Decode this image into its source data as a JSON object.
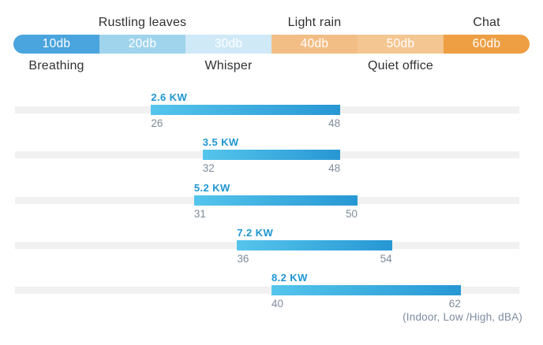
{
  "colors": {
    "segment_10db": "#4aa4dd",
    "segment_20db": "#9fd4ec",
    "segment_30db": "#cfe9f7",
    "segment_40db": "#f3be85",
    "segment_50db": "#f4c691",
    "segment_60db": "#ee9e43",
    "range_bar_gradient_start": "#55c5ec",
    "range_bar_gradient_end": "#2797d4",
    "track": "#f1f1f2",
    "kw_label": "#1e96d2",
    "value_label": "#7e8b9a",
    "scale_text": "#ffffff",
    "caption_text": "#2e3033",
    "footnote": "#7d8ba0"
  },
  "scale": {
    "min_db": 10,
    "max_db": 70,
    "segments": [
      {
        "label": "10db",
        "color": "#4aa4dd"
      },
      {
        "label": "20db",
        "color": "#9fd4ec"
      },
      {
        "label": "30db",
        "color": "#cfe9f7"
      },
      {
        "label": "40db",
        "color": "#f3be85"
      },
      {
        "label": "50db",
        "color": "#f4c691"
      },
      {
        "label": "60db",
        "color": "#ee9e43"
      }
    ],
    "labels_above": [
      {
        "text": "Rustling leaves",
        "center_db": 25
      },
      {
        "text": "Light rain",
        "center_db": 45
      },
      {
        "text": "Chat",
        "center_db": 65
      }
    ],
    "labels_below": [
      {
        "text": "Breathing",
        "center_db": 15
      },
      {
        "text": "Whisper",
        "center_db": 35
      },
      {
        "text": "Quiet office",
        "center_db": 55
      }
    ]
  },
  "chart_data": {
    "type": "bar",
    "subtype": "horizontal-range-bars",
    "title": "",
    "unit": "dBA",
    "axis_range": [
      10,
      70
    ],
    "grid": false,
    "legend": false,
    "categories": [
      "2.6 KW",
      "3.5 KW",
      "5.2 KW",
      "7.2 KW",
      "8.2 KW"
    ],
    "series": [
      {
        "name": "2.6 KW",
        "low": 26,
        "high": 48
      },
      {
        "name": "3.5 KW",
        "low": 32,
        "high": 48
      },
      {
        "name": "5.2 KW",
        "low": 31,
        "high": 50
      },
      {
        "name": "7.2 KW",
        "low": 36,
        "high": 54
      },
      {
        "name": "8.2 KW",
        "low": 40,
        "high": 62
      }
    ],
    "footnote": "(Indoor, Low /High, dBA)"
  }
}
